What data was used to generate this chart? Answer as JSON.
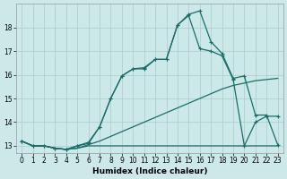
{
  "xlabel": "Humidex (Indice chaleur)",
  "bg_color": "#cce8e8",
  "grid_color": "#aacccc",
  "line_color": "#1a6e6a",
  "xlim": [
    -0.5,
    23.5
  ],
  "ylim": [
    12.7,
    19.0
  ],
  "yticks": [
    13,
    14,
    15,
    16,
    17,
    18
  ],
  "xticks": [
    0,
    1,
    2,
    3,
    4,
    5,
    6,
    7,
    8,
    9,
    10,
    11,
    12,
    13,
    14,
    15,
    16,
    17,
    18,
    19,
    20,
    21,
    22,
    23
  ],
  "series": [
    {
      "x": [
        0,
        1,
        2,
        3,
        4,
        5,
        6,
        7,
        8,
        9,
        10,
        11,
        12,
        13,
        14,
        15,
        16,
        17,
        18,
        19,
        20,
        21,
        22,
        23
      ],
      "y": [
        13.2,
        13.0,
        13.0,
        12.9,
        12.85,
        12.9,
        13.0,
        13.0,
        13.0,
        13.0,
        13.0,
        13.0,
        13.0,
        13.0,
        13.0,
        13.0,
        13.0,
        13.0,
        13.0,
        13.0,
        13.0,
        13.0,
        13.0,
        13.0
      ],
      "marker": null,
      "lw": 0.9
    },
    {
      "x": [
        0,
        1,
        2,
        3,
        4,
        5,
        6,
        7,
        8,
        9,
        10,
        11,
        12,
        13,
        14,
        15,
        16,
        17,
        18,
        19,
        20,
        21,
        22,
        23
      ],
      "y": [
        13.2,
        13.0,
        13.0,
        12.9,
        12.85,
        12.9,
        13.05,
        13.2,
        13.4,
        13.6,
        13.8,
        14.0,
        14.2,
        14.4,
        14.6,
        14.8,
        15.0,
        15.2,
        15.4,
        15.55,
        15.65,
        15.75,
        15.8,
        15.85
      ],
      "marker": null,
      "lw": 0.9
    },
    {
      "x": [
        0,
        1,
        2,
        3,
        4,
        5,
        6,
        7,
        8,
        9,
        10,
        11,
        12,
        13,
        14,
        15,
        16,
        17,
        18,
        19,
        20,
        21,
        22,
        23
      ],
      "y": [
        13.2,
        13.0,
        13.0,
        12.9,
        12.85,
        13.0,
        13.1,
        13.8,
        15.0,
        15.95,
        16.25,
        16.25,
        16.65,
        16.65,
        18.1,
        18.5,
        17.1,
        17.0,
        16.8,
        15.8,
        13.0,
        14.0,
        14.25,
        14.25
      ],
      "marker": "+",
      "lw": 0.9
    },
    {
      "x": [
        0,
        1,
        2,
        3,
        4,
        5,
        6,
        7,
        8,
        9,
        10,
        11,
        12,
        13,
        14,
        15,
        16,
        17,
        18,
        19,
        20,
        21,
        22,
        23
      ],
      "y": [
        13.2,
        13.0,
        13.0,
        12.9,
        12.85,
        13.0,
        13.15,
        13.8,
        15.0,
        15.95,
        16.25,
        16.3,
        16.65,
        16.65,
        18.1,
        18.55,
        18.7,
        17.4,
        16.9,
        15.85,
        15.95,
        14.3,
        14.3,
        13.05
      ],
      "marker": "+",
      "lw": 0.9
    }
  ]
}
